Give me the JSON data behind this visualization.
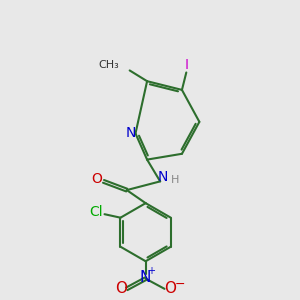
{
  "bg_color": "#e8e8e8",
  "bond_color": "#2d6e2d",
  "N_color": "#0000cc",
  "O_color": "#cc0000",
  "Cl_color": "#00aa00",
  "I_color": "#cc00cc",
  "H_color": "#888888",
  "line_width": 1.5,
  "font_size": 10,
  "small_font_size": 8,
  "xlim": [
    0,
    10
  ],
  "ylim": [
    0,
    10
  ]
}
